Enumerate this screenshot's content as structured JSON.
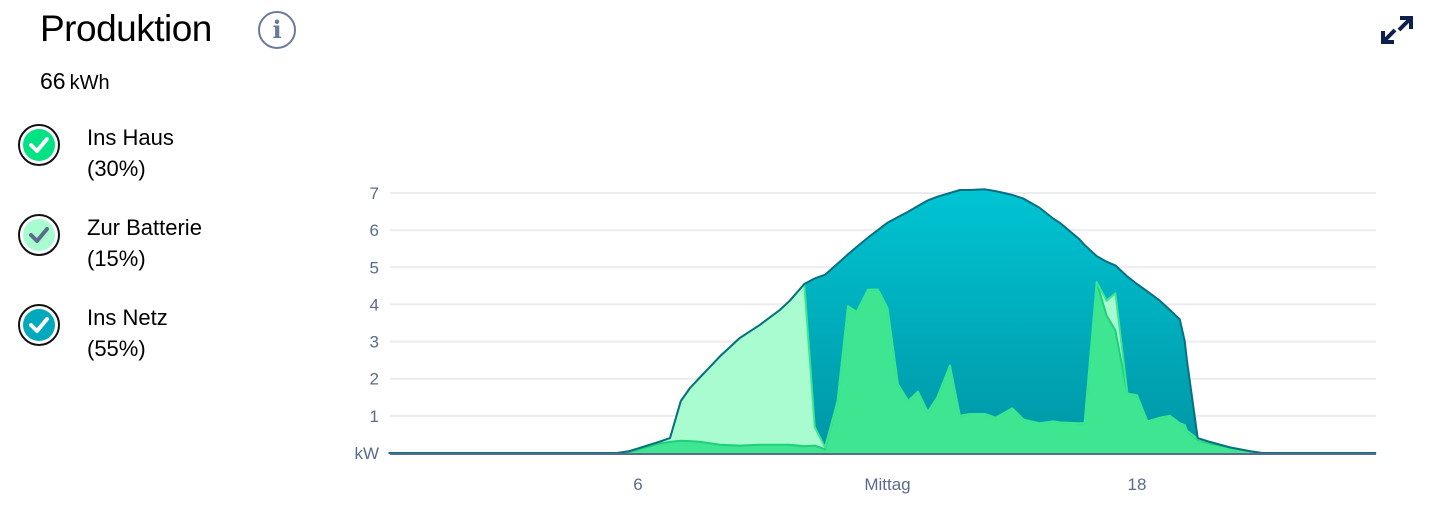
{
  "header": {
    "title": "Produktion",
    "info_icon": "info-circle-icon",
    "expand_icon": "expand-arrows-icon"
  },
  "summary": {
    "value": "66",
    "unit": "kWh"
  },
  "legend": [
    {
      "label": "Ins Haus",
      "percent": "(30%)",
      "color": "#3ee691",
      "check_color": "#ffffff",
      "icon": "check-circle-icon"
    },
    {
      "label": "Zur Batterie",
      "percent": "(15%)",
      "color": "#a8fcd0",
      "check_color": "#5b6b8c",
      "icon": "check-circle-icon"
    },
    {
      "label": "Ins Netz",
      "percent": "(55%)",
      "color": "#00a9bb",
      "check_color": "#ffffff",
      "icon": "check-circle-icon"
    }
  ],
  "chart_data": {
    "type": "area",
    "stacked": true,
    "ylabel": "kW",
    "ylim": [
      0,
      7
    ],
    "yticks": [
      "1",
      "2",
      "3",
      "4",
      "5",
      "6",
      "7"
    ],
    "xlim": [
      0,
      24
    ],
    "xticks": [
      {
        "value": 6,
        "label": "6"
      },
      {
        "value": 12,
        "label": "Mittag"
      },
      {
        "value": 18,
        "label": "18"
      }
    ],
    "grid": true,
    "x": [
      0,
      5.5,
      5.8,
      6.5,
      6.77,
      7.03,
      7.25,
      7.5,
      7.97,
      8.45,
      8.93,
      9.41,
      9.65,
      10.0,
      10.25,
      10.5,
      10.8,
      11.05,
      11.26,
      11.53,
      11.77,
      12.0,
      12.25,
      12.5,
      12.73,
      12.97,
      13.2,
      13.5,
      13.74,
      13.98,
      14.34,
      14.6,
      15.0,
      15.27,
      15.66,
      16.0,
      16.14,
      16.62,
      16.74,
      17.03,
      17.27,
      17.48,
      17.77,
      18.0,
      18.25,
      18.55,
      18.79,
      19.03,
      19.15,
      19.2,
      19.46,
      19.75,
      20.23,
      20.7,
      21.0,
      23.75
    ],
    "series": [
      {
        "name": "Ins Haus",
        "color": "#3ee691",
        "stroke": "#1fd07a",
        "values": [
          0,
          0,
          0.03,
          0.25,
          0.3,
          0.33,
          0.32,
          0.3,
          0.22,
          0.2,
          0.22,
          0.22,
          0.22,
          0.18,
          0.2,
          0.1,
          1.4,
          3.95,
          3.8,
          4.4,
          4.4,
          3.9,
          1.85,
          1.4,
          1.65,
          1.1,
          1.5,
          2.35,
          1.0,
          1.05,
          1.05,
          0.95,
          1.2,
          0.9,
          0.8,
          0.85,
          0.82,
          0.8,
          0.8,
          4.6,
          3.7,
          3.3,
          1.6,
          1.55,
          0.85,
          0.95,
          1.0,
          0.8,
          0.75,
          0.6,
          0.35,
          0.25,
          0.15,
          0.05,
          0,
          0
        ]
      },
      {
        "name": "Zur Batterie",
        "color": "#a8fcd0",
        "stroke": "#3ee691",
        "values": [
          0,
          0,
          0.02,
          0.05,
          0.1,
          1.07,
          1.43,
          1.75,
          2.38,
          2.9,
          3.23,
          3.63,
          3.88,
          4.37,
          0.5,
          0.05,
          0,
          0,
          0,
          0,
          0,
          0,
          0,
          0,
          0,
          0,
          0,
          0,
          0,
          0,
          0,
          0,
          0,
          0,
          0,
          0,
          0,
          0,
          0,
          0,
          0.4,
          1.0,
          0,
          0,
          0,
          0,
          0,
          0,
          0,
          0,
          0.03,
          0.05,
          0,
          0,
          0,
          0
        ]
      },
      {
        "name": "Ins Netz",
        "color": "#00a9bb",
        "stroke": "#0a6f80",
        "values": [
          0,
          0,
          0,
          0,
          0,
          0,
          0,
          0,
          0,
          0,
          0,
          0,
          0,
          0,
          4.0,
          4.65,
          3.7,
          1.4,
          1.75,
          1.4,
          1.6,
          2.3,
          4.5,
          5.1,
          5.0,
          5.7,
          5.4,
          4.65,
          6.08,
          6.03,
          6.05,
          6.1,
          5.75,
          5.95,
          5.8,
          5.45,
          5.38,
          4.95,
          4.8,
          0.7,
          1.05,
          0.75,
          3.15,
          3.0,
          3.5,
          3.15,
          2.85,
          2.8,
          2.25,
          1.9,
          0.02,
          0,
          0,
          0,
          0,
          0
        ]
      }
    ]
  }
}
